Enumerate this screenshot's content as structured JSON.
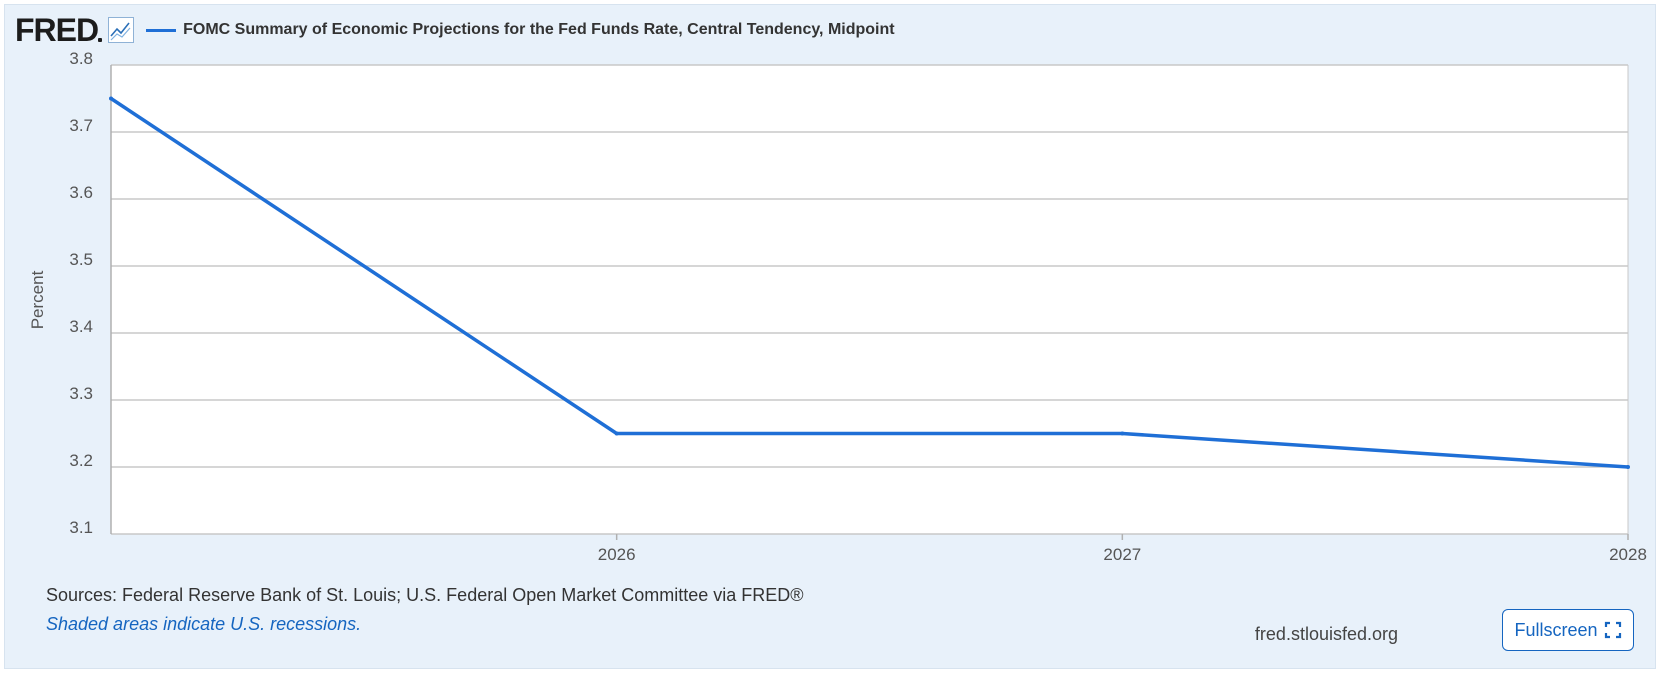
{
  "header": {
    "logo_text": "FRED",
    "series_title": "FOMC Summary of Economic Projections for the Fed Funds Rate, Central Tendency, Midpoint"
  },
  "footer": {
    "sources": "Sources: Federal Reserve Bank of St. Louis; U.S. Federal Open Market Committee via FRED®",
    "note": "Shaded areas indicate U.S. recessions.",
    "site": "fred.stlouisfed.org",
    "fullscreen_label": "Fullscreen"
  },
  "colors": {
    "series": "#1f6fd6",
    "grid": "#c8c8c8",
    "link": "#1565c0",
    "background": "#e8f1fa"
  },
  "icons": {
    "chart": "line-chart-icon",
    "fullscreen": "expand-icon"
  },
  "chart_data": {
    "type": "line",
    "ylabel": "Percent",
    "xlabel": "",
    "ylim": [
      3.1,
      3.8
    ],
    "yticks": [
      "3.1",
      "3.2",
      "3.3",
      "3.4",
      "3.5",
      "3.6",
      "3.7",
      "3.8"
    ],
    "xlim": [
      "2025",
      "2028"
    ],
    "xticks": [
      "2026",
      "2027",
      "2028"
    ],
    "grid": true,
    "series": [
      {
        "name": "FOMC Summary of Economic Projections for the Fed Funds Rate, Central Tendency, Midpoint",
        "points": [
          {
            "x": "2025",
            "y": 3.75
          },
          {
            "x": "2026",
            "y": 3.25
          },
          {
            "x": "2027",
            "y": 3.25
          },
          {
            "x": "2028",
            "y": 3.2
          }
        ]
      }
    ]
  }
}
